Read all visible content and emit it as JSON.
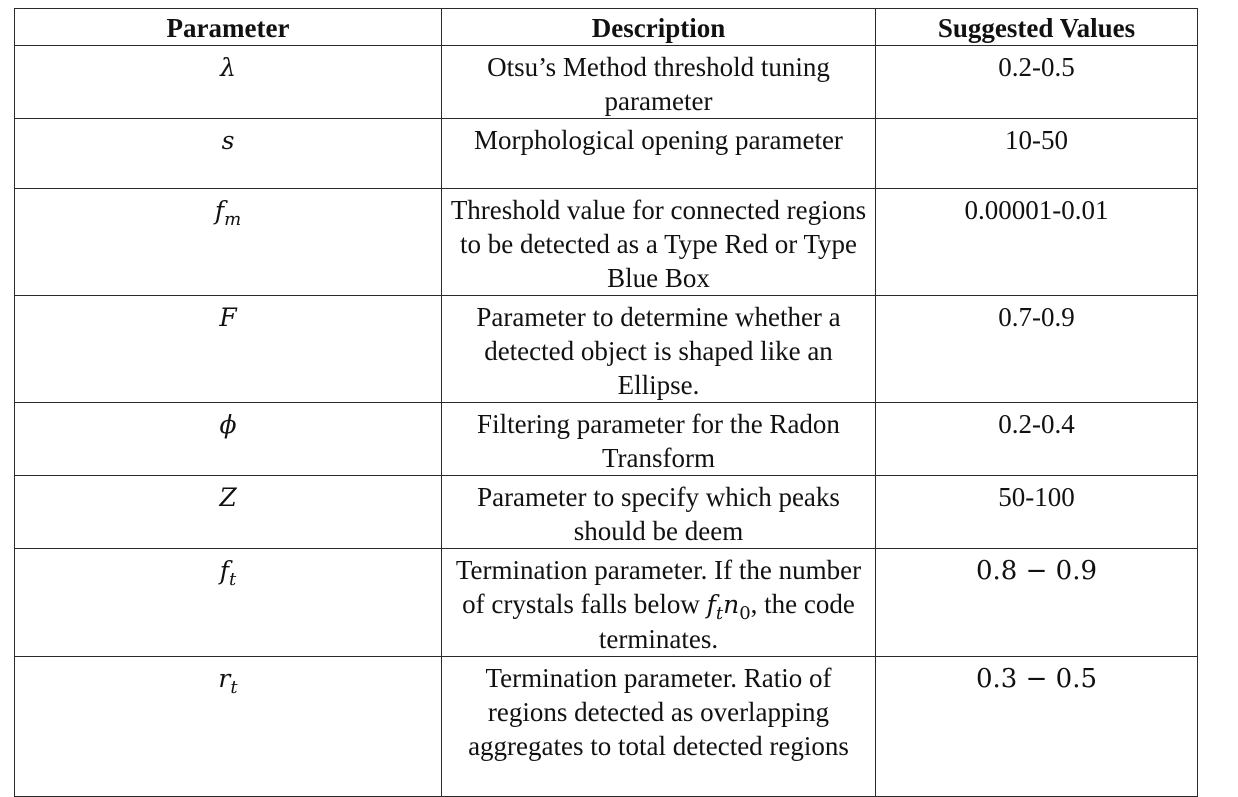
{
  "table": {
    "headers": [
      "Parameter",
      "Description",
      "Suggested Values"
    ],
    "rows": [
      {
        "symbol": "λ",
        "sub": "",
        "description": "Otsu’s Method threshold tuning parameter",
        "value": "0.2-0.5"
      },
      {
        "symbol": "s",
        "sub": "",
        "description": "Morphological opening parameter",
        "value": "10-50"
      },
      {
        "symbol": "f",
        "sub": "m",
        "description": "Threshold value for connected regions to be detected as a Type Red or Type Blue Box",
        "value": "0.00001-0.01"
      },
      {
        "symbol": "F",
        "sub": "",
        "description": "Parameter to determine whether a detected object is shaped like an Ellipse.",
        "value": "0.7-0.9"
      },
      {
        "symbol": "ϕ",
        "sub": "",
        "description": "Filtering parameter for the Radon Transform",
        "value": "0.2-0.4"
      },
      {
        "symbol": "Z",
        "sub": "",
        "description": "Parameter to specify which peaks should be deem",
        "value": "50-100"
      },
      {
        "symbol": "f",
        "sub": "t",
        "description": "Termination parameter. If the number of crystals falls below",
        "description_math": {
          "base1": "f",
          "sub1": "t",
          "base2": "n",
          "sub2": "0"
        },
        "description_tail": ", the code terminates.",
        "value": "0.8 − 0.9"
      },
      {
        "symbol": "r",
        "sub": "t",
        "description": "Termination parameter. Ratio of regions detected as overlapping aggregates to total detected regions",
        "value": "0.3 − 0.5"
      }
    ]
  }
}
